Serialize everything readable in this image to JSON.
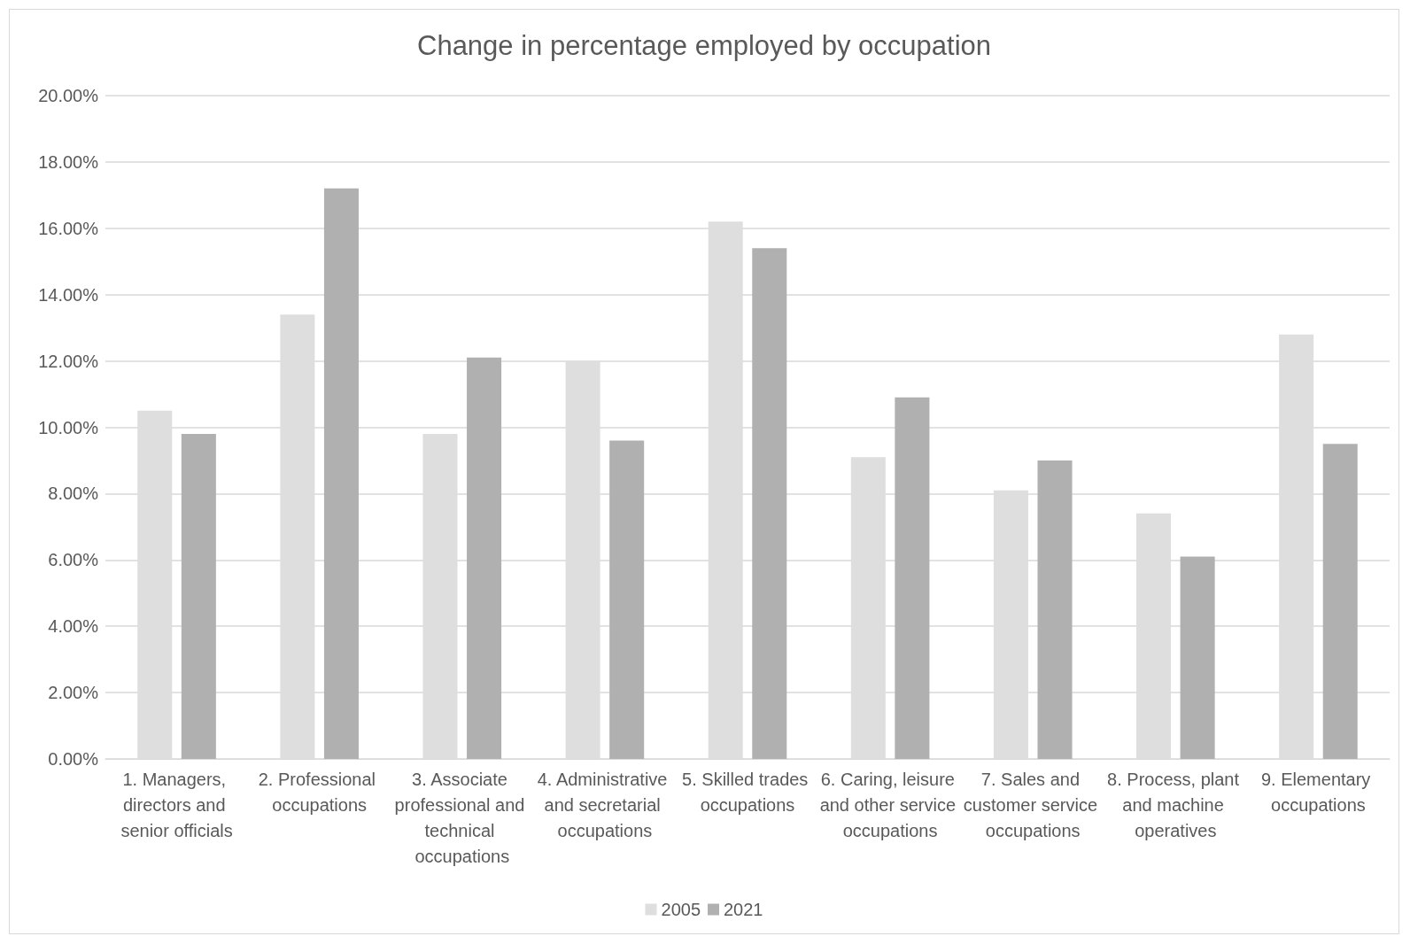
{
  "chart_data": {
    "type": "bar",
    "title": "Change in percentage employed by occupation",
    "categories": [
      "1. Managers, directors and senior officials",
      "2. Professional occupations",
      "3. Associate professional and technical occupations",
      "4. Administrative and secretarial occupations",
      "5. Skilled trades occupations",
      "6. Caring, leisure and other service occupations",
      "7. Sales and customer service occupations",
      "8. Process, plant and machine operatives",
      "9. Elementary occupations"
    ],
    "series": [
      {
        "name": "2005",
        "color": "#dedede",
        "values": [
          10.5,
          13.4,
          9.8,
          12.0,
          16.2,
          9.1,
          8.1,
          7.4,
          12.8
        ]
      },
      {
        "name": "2021",
        "color": "#b0b0b0",
        "values": [
          9.8,
          17.2,
          12.1,
          9.6,
          15.4,
          10.9,
          9.0,
          6.1,
          9.5
        ]
      }
    ],
    "ylim": [
      0,
      20
    ],
    "yticks": [
      {
        "value": 0,
        "label": "0.00%"
      },
      {
        "value": 2,
        "label": "2.00%"
      },
      {
        "value": 4,
        "label": "4.00%"
      },
      {
        "value": 6,
        "label": "6.00%"
      },
      {
        "value": 8,
        "label": "8.00%"
      },
      {
        "value": 10,
        "label": "10.00%"
      },
      {
        "value": 12,
        "label": "12.00%"
      },
      {
        "value": 14,
        "label": "14.00%"
      },
      {
        "value": 16,
        "label": "16.00%"
      },
      {
        "value": 18,
        "label": "18.00%"
      },
      {
        "value": 20,
        "label": "20.00%"
      }
    ],
    "grid": "y",
    "legend": "bottom"
  }
}
